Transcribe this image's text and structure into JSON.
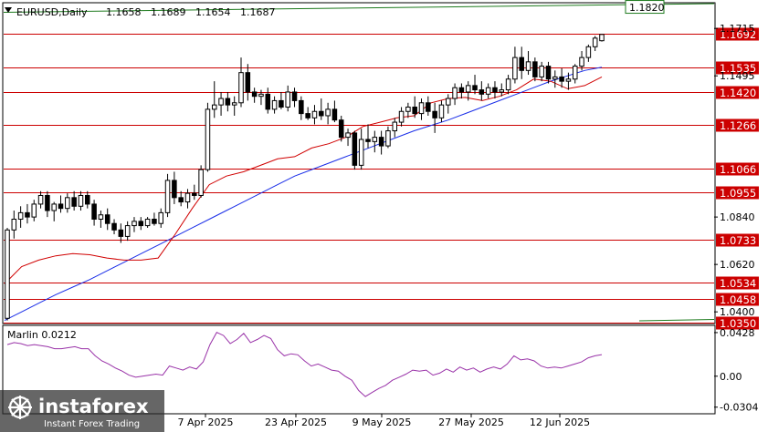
{
  "chart_data": [
    {
      "type": "candlestick",
      "symbol": "EURUSD",
      "timeframe": "Daily",
      "ohlc_header": [
        "1.1658",
        "1.1689",
        "1.1654",
        "1.1687"
      ],
      "y_ticks": [
        "1.1715",
        "1.1495",
        "1.0840",
        "1.0620",
        "1.0400"
      ],
      "ylim": [
        1.035,
        1.183
      ],
      "x_ticks": [
        "7 Apr 2025",
        "23 Apr 2025",
        "9 May 2025",
        "27 May 2025",
        "12 Jun 2025"
      ],
      "levels": [
        {
          "value": 1.1692,
          "label": "1.1692"
        },
        {
          "value": 1.1535,
          "label": "1.1535"
        },
        {
          "value": 1.142,
          "label": "1.1420"
        },
        {
          "value": 1.1266,
          "label": "1.1266"
        },
        {
          "value": 1.1066,
          "label": "1.1066"
        },
        {
          "value": 1.0955,
          "label": "1.0955"
        },
        {
          "value": 1.0733,
          "label": "1.0733"
        },
        {
          "value": 1.0534,
          "label": "1.0534"
        },
        {
          "value": 1.0458,
          "label": "1.0458"
        },
        {
          "value": 1.035,
          "label": "1.0350"
        }
      ],
      "upper_line_label": "1.1820",
      "candles": [
        [
          1.037,
          1.079,
          1.036,
          1.078
        ],
        [
          1.078,
          1.087,
          1.074,
          1.083
        ],
        [
          1.083,
          1.089,
          1.079,
          1.086
        ],
        [
          1.086,
          1.09,
          1.081,
          1.084
        ],
        [
          1.084,
          1.092,
          1.082,
          1.09
        ],
        [
          1.09,
          1.096,
          1.088,
          1.094
        ],
        [
          1.094,
          1.096,
          1.084,
          1.087
        ],
        [
          1.087,
          1.091,
          1.082,
          1.09
        ],
        [
          1.09,
          1.094,
          1.086,
          1.088
        ],
        [
          1.088,
          1.095,
          1.086,
          1.093
        ],
        [
          1.093,
          1.096,
          1.087,
          1.089
        ],
        [
          1.089,
          1.096,
          1.087,
          1.094
        ],
        [
          1.094,
          1.096,
          1.088,
          1.09
        ],
        [
          1.09,
          1.092,
          1.08,
          1.083
        ],
        [
          1.083,
          1.087,
          1.079,
          1.085
        ],
        [
          1.085,
          1.088,
          1.078,
          1.081
        ],
        [
          1.081,
          1.083,
          1.076,
          1.078
        ],
        [
          1.078,
          1.081,
          1.072,
          1.075
        ],
        [
          1.075,
          1.082,
          1.073,
          1.08
        ],
        [
          1.08,
          1.084,
          1.077,
          1.082
        ],
        [
          1.082,
          1.084,
          1.078,
          1.08
        ],
        [
          1.08,
          1.084,
          1.079,
          1.083
        ],
        [
          1.083,
          1.086,
          1.08,
          1.081
        ],
        [
          1.081,
          1.088,
          1.079,
          1.086
        ],
        [
          1.086,
          1.104,
          1.084,
          1.101
        ],
        [
          1.101,
          1.105,
          1.09,
          1.093
        ],
        [
          1.093,
          1.096,
          1.089,
          1.091
        ],
        [
          1.091,
          1.097,
          1.088,
          1.095
        ],
        [
          1.095,
          1.099,
          1.092,
          1.094
        ],
        [
          1.094,
          1.108,
          1.093,
          1.106
        ],
        [
          1.106,
          1.137,
          1.105,
          1.134
        ],
        [
          1.134,
          1.147,
          1.13,
          1.136
        ],
        [
          1.136,
          1.142,
          1.131,
          1.139
        ],
        [
          1.139,
          1.142,
          1.133,
          1.136
        ],
        [
          1.136,
          1.14,
          1.131,
          1.137
        ],
        [
          1.137,
          1.158,
          1.135,
          1.151
        ],
        [
          1.151,
          1.155,
          1.138,
          1.142
        ],
        [
          1.142,
          1.144,
          1.137,
          1.14
        ],
        [
          1.14,
          1.143,
          1.136,
          1.141
        ],
        [
          1.141,
          1.144,
          1.132,
          1.134
        ],
        [
          1.134,
          1.14,
          1.132,
          1.138
        ],
        [
          1.138,
          1.142,
          1.134,
          1.135
        ],
        [
          1.135,
          1.145,
          1.133,
          1.142
        ],
        [
          1.142,
          1.144,
          1.135,
          1.138
        ],
        [
          1.138,
          1.14,
          1.129,
          1.132
        ],
        [
          1.132,
          1.135,
          1.129,
          1.13
        ],
        [
          1.13,
          1.136,
          1.127,
          1.133
        ],
        [
          1.133,
          1.139,
          1.129,
          1.131
        ],
        [
          1.131,
          1.137,
          1.127,
          1.134
        ],
        [
          1.134,
          1.138,
          1.128,
          1.129
        ],
        [
          1.129,
          1.131,
          1.119,
          1.121
        ],
        [
          1.121,
          1.125,
          1.117,
          1.123
        ],
        [
          1.123,
          1.124,
          1.106,
          1.108
        ],
        [
          1.108,
          1.125,
          1.106,
          1.12
        ],
        [
          1.12,
          1.127,
          1.116,
          1.119
        ],
        [
          1.119,
          1.124,
          1.114,
          1.121
        ],
        [
          1.121,
          1.124,
          1.113,
          1.117
        ],
        [
          1.117,
          1.126,
          1.116,
          1.124
        ],
        [
          1.124,
          1.13,
          1.121,
          1.128
        ],
        [
          1.128,
          1.135,
          1.126,
          1.133
        ],
        [
          1.133,
          1.137,
          1.13,
          1.135
        ],
        [
          1.135,
          1.14,
          1.13,
          1.132
        ],
        [
          1.132,
          1.139,
          1.129,
          1.137
        ],
        [
          1.137,
          1.14,
          1.131,
          1.133
        ],
        [
          1.133,
          1.137,
          1.123,
          1.13
        ],
        [
          1.13,
          1.138,
          1.128,
          1.136
        ],
        [
          1.136,
          1.141,
          1.132,
          1.139
        ],
        [
          1.139,
          1.146,
          1.136,
          1.144
        ],
        [
          1.144,
          1.146,
          1.139,
          1.142
        ],
        [
          1.142,
          1.147,
          1.138,
          1.145
        ],
        [
          1.145,
          1.15,
          1.141,
          1.143
        ],
        [
          1.143,
          1.147,
          1.138,
          1.141
        ],
        [
          1.141,
          1.146,
          1.139,
          1.144
        ],
        [
          1.144,
          1.147,
          1.139,
          1.142
        ],
        [
          1.142,
          1.146,
          1.14,
          1.143
        ],
        [
          1.143,
          1.15,
          1.141,
          1.148
        ],
        [
          1.148,
          1.163,
          1.146,
          1.158
        ],
        [
          1.158,
          1.163,
          1.148,
          1.152
        ],
        [
          1.152,
          1.161,
          1.15,
          1.156
        ],
        [
          1.156,
          1.158,
          1.147,
          1.149
        ],
        [
          1.149,
          1.156,
          1.147,
          1.154
        ],
        [
          1.154,
          1.156,
          1.146,
          1.148
        ],
        [
          1.148,
          1.152,
          1.144,
          1.149
        ],
        [
          1.149,
          1.153,
          1.144,
          1.147
        ],
        [
          1.147,
          1.151,
          1.143,
          1.148
        ],
        [
          1.148,
          1.155,
          1.146,
          1.154
        ],
        [
          1.154,
          1.161,
          1.152,
          1.158
        ],
        [
          1.158,
          1.164,
          1.156,
          1.163
        ],
        [
          1.163,
          1.168,
          1.161,
          1.167
        ],
        [
          1.1658,
          1.1689,
          1.1654,
          1.1687
        ]
      ],
      "ma_slow": [
        1.036,
        1.04,
        1.044,
        1.048,
        1.0515,
        1.055,
        1.059,
        1.063,
        1.067,
        1.071,
        1.075,
        1.079,
        1.083,
        1.087,
        1.091,
        1.095,
        1.099,
        1.103,
        1.106,
        1.109,
        1.112,
        1.115,
        1.118,
        1.121,
        1.124,
        1.1265,
        1.129,
        1.132,
        1.135,
        1.138,
        1.141,
        1.144,
        1.147,
        1.1495,
        1.152,
        1.1535
      ],
      "ma_fast": [
        1.053,
        1.061,
        1.064,
        1.066,
        1.067,
        1.0665,
        1.065,
        1.064,
        1.064,
        1.065,
        1.076,
        1.088,
        1.099,
        1.103,
        1.105,
        1.108,
        1.111,
        1.112,
        1.116,
        1.118,
        1.121,
        1.126,
        1.128,
        1.13,
        1.131,
        1.137,
        1.139,
        1.1395,
        1.138,
        1.14,
        1.143,
        1.148,
        1.147,
        1.1435,
        1.145,
        1.149
      ],
      "upper_line": [
        1.179,
        1.183
      ],
      "indicator": {
        "name": "Marlin",
        "value": "0.0212",
        "y_ticks": [
          "0.0428",
          "0.00",
          "-0.0304"
        ],
        "ylim": [
          -0.036,
          0.049
        ],
        "values": [
          0.031,
          0.033,
          0.032,
          0.03,
          0.031,
          0.03,
          0.029,
          0.027,
          0.027,
          0.028,
          0.029,
          0.027,
          0.027,
          0.02,
          0.015,
          0.012,
          0.008,
          0.005,
          0.001,
          -0.001,
          0.0,
          0.001,
          0.002,
          0.001,
          0.01,
          0.008,
          0.006,
          0.009,
          0.007,
          0.014,
          0.031,
          0.043,
          0.04,
          0.032,
          0.036,
          0.042,
          0.033,
          0.036,
          0.04,
          0.037,
          0.026,
          0.02,
          0.022,
          0.021,
          0.015,
          0.01,
          0.012,
          0.009,
          0.006,
          0.005,
          0.0,
          -0.004,
          -0.014,
          -0.02,
          -0.016,
          -0.012,
          -0.009,
          -0.004,
          -0.001,
          0.002,
          0.006,
          0.005,
          0.006,
          0.001,
          0.003,
          0.007,
          0.004,
          0.009,
          0.006,
          0.008,
          0.004,
          0.007,
          0.009,
          0.007,
          0.012,
          0.02,
          0.016,
          0.017,
          0.015,
          0.01,
          0.008,
          0.009,
          0.008,
          0.01,
          0.012,
          0.014,
          0.018,
          0.02,
          0.0212
        ]
      }
    }
  ],
  "watermark": {
    "brand": "instaforex",
    "tagline": "Instant Forex Trading"
  },
  "colors": {
    "level_line": "#cc0000",
    "level_label_bg": "#cc0000",
    "ma_slow": "#1a2ee8",
    "ma_fast": "#d00000",
    "upper_line": "#1d7a1d",
    "indicator": "#9932a8",
    "axis_text": "#000000"
  }
}
